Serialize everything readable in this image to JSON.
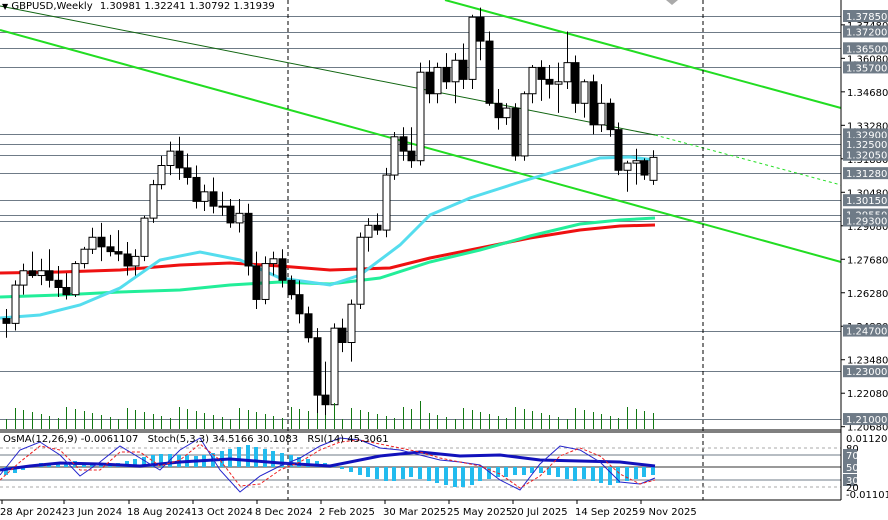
{
  "header": {
    "symbol_timeframe": "GBPUSD,Weekly",
    "ohlc": "1.30981 1.32241 1.30792 1.31939",
    "dropdown_icon": "triangle-down-icon"
  },
  "indicator_header": {
    "osma": "OsMA(12,26,9) -0.0061107",
    "stoch": "Stoch(5,3,3) 34.5166 30.1083",
    "rsi": "RSI(14) 45.3061"
  },
  "colors": {
    "background": "#ffffff",
    "level_line": "#6f7b87",
    "label_bg": "#6f7b87",
    "trend_line": "#22dd22",
    "ma_red": "#ee1111",
    "ma_cyan": "#55ddee",
    "ma_seagreen": "#22ee99",
    "volume": "#117711",
    "osma_hist": "#22bbee",
    "rsi_line": "#1111bb",
    "stoch_main": "#2222cc",
    "stoch_signal": "#ee2222"
  },
  "chart_data": {
    "type": "candlestick",
    "title": "GBPUSD,Weekly 1.30981 1.32241 1.30792 1.31939",
    "price_axis": {
      "ticks": [
        "1.37480",
        "1.36080",
        "1.34680",
        "1.33280",
        "1.31880",
        "1.30480",
        "1.29080",
        "1.27680",
        "1.26280",
        "1.24880",
        "1.23480",
        "1.22080",
        "1.20680"
      ],
      "range": [
        1.2068,
        1.382
      ]
    },
    "levels": [
      {
        "price": "1.37850"
      },
      {
        "price": "1.37200"
      },
      {
        "price": "1.36500"
      },
      {
        "price": "1.35700"
      },
      {
        "price": "1.32900"
      },
      {
        "price": "1.32500"
      },
      {
        "price": "1.32050"
      },
      {
        "price": "1.31280"
      },
      {
        "price": "1.30150"
      },
      {
        "price": "1.29550"
      },
      {
        "price": "1.29300"
      },
      {
        "price": "1.24700"
      },
      {
        "price": "1.23000"
      },
      {
        "price": "1.21000"
      }
    ],
    "x_ticks": [
      "28 Apr 2024",
      "23 Jun 2024",
      "18 Aug 2024",
      "13 Oct 2024",
      "8 Dec 2024",
      "2 Feb 2025",
      "30 Mar 2025",
      "25 May 2025",
      "20 Jul 2025",
      "14 Sep 2025",
      "9 Nov 2025"
    ],
    "candles": [
      [
        1.252,
        1.256,
        1.244,
        1.25
      ],
      [
        1.25,
        1.268,
        1.247,
        1.266
      ],
      [
        1.266,
        1.275,
        1.262,
        1.272
      ],
      [
        1.272,
        1.28,
        1.269,
        1.27
      ],
      [
        1.27,
        1.277,
        1.266,
        1.272
      ],
      [
        1.272,
        1.281,
        1.265,
        1.268
      ],
      [
        1.268,
        1.274,
        1.261,
        1.265
      ],
      [
        1.265,
        1.271,
        1.26,
        1.262
      ],
      [
        1.262,
        1.276,
        1.261,
        1.275
      ],
      [
        1.275,
        1.282,
        1.273,
        1.281
      ],
      [
        1.281,
        1.29,
        1.279,
        1.286
      ],
      [
        1.286,
        1.292,
        1.276,
        1.282
      ],
      [
        1.282,
        1.287,
        1.278,
        1.28
      ],
      [
        1.28,
        1.289,
        1.276,
        1.279
      ],
      [
        1.279,
        1.284,
        1.27,
        1.274
      ],
      [
        1.274,
        1.281,
        1.27,
        1.278
      ],
      [
        1.278,
        1.295,
        1.276,
        1.294
      ],
      [
        1.294,
        1.31,
        1.292,
        1.308
      ],
      [
        1.308,
        1.32,
        1.306,
        1.316
      ],
      [
        1.316,
        1.326,
        1.312,
        1.322
      ],
      [
        1.322,
        1.328,
        1.31,
        1.315
      ],
      [
        1.315,
        1.321,
        1.308,
        1.311
      ],
      [
        1.311,
        1.316,
        1.298,
        1.301
      ],
      [
        1.301,
        1.308,
        1.297,
        1.305
      ],
      [
        1.305,
        1.311,
        1.296,
        1.299
      ],
      [
        1.299,
        1.305,
        1.295,
        1.299
      ],
      [
        1.299,
        1.302,
        1.29,
        1.292
      ],
      [
        1.292,
        1.302,
        1.288,
        1.296
      ],
      [
        1.296,
        1.3,
        1.27,
        1.274
      ],
      [
        1.274,
        1.28,
        1.256,
        1.26
      ],
      [
        1.26,
        1.278,
        1.258,
        1.275
      ],
      [
        1.275,
        1.28,
        1.27,
        1.277
      ],
      [
        1.277,
        1.281,
        1.265,
        1.268
      ],
      [
        1.268,
        1.27,
        1.26,
        1.262
      ],
      [
        1.262,
        1.268,
        1.25,
        1.254
      ],
      [
        1.254,
        1.257,
        1.242,
        1.244
      ],
      [
        1.244,
        1.248,
        1.21,
        1.22
      ],
      [
        1.22,
        1.234,
        1.21,
        1.216
      ],
      [
        1.216,
        1.25,
        1.214,
        1.248
      ],
      [
        1.248,
        1.252,
        1.238,
        1.242
      ],
      [
        1.242,
        1.26,
        1.234,
        1.258
      ],
      [
        1.258,
        1.288,
        1.256,
        1.286
      ],
      [
        1.286,
        1.294,
        1.28,
        1.291
      ],
      [
        1.291,
        1.296,
        1.287,
        1.289
      ],
      [
        1.289,
        1.315,
        1.286,
        1.312
      ],
      [
        1.312,
        1.33,
        1.31,
        1.328
      ],
      [
        1.328,
        1.332,
        1.318,
        1.322
      ],
      [
        1.322,
        1.332,
        1.315,
        1.318
      ],
      [
        1.318,
        1.359,
        1.316,
        1.355
      ],
      [
        1.355,
        1.36,
        1.342,
        1.346
      ],
      [
        1.346,
        1.359,
        1.342,
        1.357
      ],
      [
        1.357,
        1.363,
        1.348,
        1.351
      ],
      [
        1.351,
        1.363,
        1.342,
        1.36
      ],
      [
        1.36,
        1.367,
        1.348,
        1.352
      ],
      [
        1.352,
        1.379,
        1.348,
        1.378
      ],
      [
        1.378,
        1.382,
        1.36,
        1.368
      ],
      [
        1.368,
        1.372,
        1.341,
        1.342
      ],
      [
        1.342,
        1.348,
        1.331,
        1.336
      ],
      [
        1.336,
        1.342,
        1.333,
        1.34
      ],
      [
        1.34,
        1.342,
        1.318,
        1.32
      ],
      [
        1.32,
        1.347,
        1.318,
        1.346
      ],
      [
        1.346,
        1.358,
        1.342,
        1.357
      ],
      [
        1.357,
        1.36,
        1.343,
        1.352
      ],
      [
        1.352,
        1.358,
        1.344,
        1.35
      ],
      [
        1.35,
        1.359,
        1.338,
        1.351
      ],
      [
        1.351,
        1.372,
        1.348,
        1.359
      ],
      [
        1.359,
        1.362,
        1.338,
        1.342
      ],
      [
        1.342,
        1.352,
        1.336,
        1.351
      ],
      [
        1.351,
        1.354,
        1.329,
        1.333
      ],
      [
        1.333,
        1.35,
        1.33,
        1.342
      ],
      [
        1.342,
        1.344,
        1.328,
        1.331
      ],
      [
        1.331,
        1.334,
        1.312,
        1.314
      ],
      [
        1.314,
        1.318,
        1.305,
        1.317
      ],
      [
        1.317,
        1.323,
        1.308,
        1.318
      ],
      [
        1.318,
        1.319,
        1.31,
        1.312
      ],
      [
        1.3098,
        1.3224,
        1.3079,
        1.3194
      ]
    ],
    "moving_averages": [
      {
        "name": "MA red (slow)",
        "color": "#ee1111"
      },
      {
        "name": "MA cyan (fast)",
        "color": "#55ddee"
      },
      {
        "name": "MA seagreen (mid)",
        "color": "#22ee99"
      }
    ],
    "indicator_panel": {
      "axis_ticks": [
        "0.011205",
        "80",
        "70",
        "50",
        "30",
        "20",
        "-0.011015"
      ],
      "osma": -0.0061107,
      "stoch_main": 34.5166,
      "stoch_signal": 30.1083,
      "rsi": 45.3061
    }
  }
}
